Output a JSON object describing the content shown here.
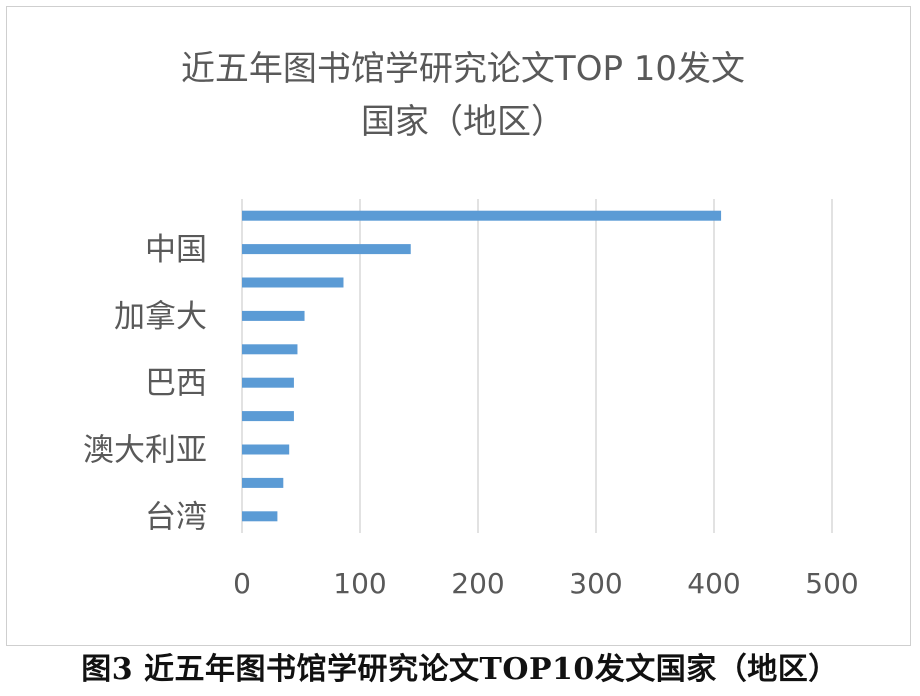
{
  "caption": "图3 近五年图书馆学研究论文TOP10发文国家（地区）",
  "chart_data": {
    "type": "bar",
    "orientation": "horizontal",
    "title_lines": [
      "近五年图书馆学研究论文TOP 10发文",
      "国家（地区）"
    ],
    "categories": [
      "",
      "中国",
      "",
      "加拿大",
      "",
      "巴西",
      "",
      "澳大利亚",
      "",
      "台湾"
    ],
    "values": [
      406,
      143,
      86,
      53,
      47,
      44,
      44,
      40,
      35,
      30
    ],
    "xticks": [
      0,
      100,
      200,
      300,
      400,
      500
    ],
    "xlim": [
      0,
      500
    ],
    "grid": "vertical",
    "legend": "none",
    "bar_color": "#5b9bd5",
    "grid_color": "#d9d9d9",
    "text_color": "#595959"
  }
}
